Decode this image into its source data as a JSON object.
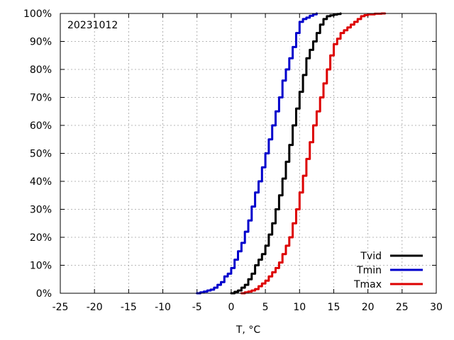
{
  "chart_data": {
    "type": "line",
    "title": "",
    "annotation": "20231012",
    "xlabel": "T, °C",
    "ylabel": "",
    "xlim": [
      -25,
      30
    ],
    "ylim": [
      0,
      100
    ],
    "xticks": [
      "-25",
      "-20",
      "-15",
      "-10",
      "-5",
      "0",
      "5",
      "10",
      "15",
      "20",
      "25",
      "30"
    ],
    "yticks": [
      "0%",
      "10%",
      "20%",
      "30%",
      "40%",
      "50%",
      "60%",
      "70%",
      "80%",
      "90%",
      "100%"
    ],
    "grid": true,
    "legend_position": "bottom-right",
    "series": [
      {
        "name": "Tvid",
        "color": "#000000",
        "x": [
          0.0,
          0.5,
          1.0,
          1.5,
          2.0,
          2.5,
          3.0,
          3.5,
          4.0,
          4.5,
          5.0,
          5.5,
          6.0,
          6.5,
          7.0,
          7.5,
          8.0,
          8.5,
          9.0,
          9.5,
          10.0,
          10.5,
          11.0,
          11.5,
          12.0,
          12.5,
          13.0,
          13.5,
          14.0,
          14.5,
          15.0,
          15.5,
          16.0
        ],
        "y": [
          0,
          0.5,
          1,
          2,
          3,
          5,
          7,
          10,
          12,
          14,
          17,
          21,
          25,
          30,
          35,
          41,
          47,
          53,
          60,
          66,
          72,
          78,
          84,
          87,
          90,
          93,
          96,
          98,
          99,
          99.3,
          99.6,
          99.8,
          100
        ]
      },
      {
        "name": "Tmin",
        "color": "#0000cc",
        "x": [
          -5.0,
          -4.5,
          -4.0,
          -3.5,
          -3.0,
          -2.5,
          -2.0,
          -1.5,
          -1.0,
          -0.5,
          0.0,
          0.5,
          1.0,
          1.5,
          2.0,
          2.5,
          3.0,
          3.5,
          4.0,
          4.5,
          5.0,
          5.5,
          6.0,
          6.5,
          7.0,
          7.5,
          8.0,
          8.5,
          9.0,
          9.5,
          10.0,
          10.5,
          11.0,
          11.5,
          12.0,
          12.5
        ],
        "y": [
          0,
          0.3,
          0.6,
          1,
          1.3,
          2,
          3,
          4,
          6,
          7,
          9,
          12,
          15,
          18,
          22,
          26,
          31,
          36,
          40,
          45,
          50,
          55,
          60,
          65,
          70,
          76,
          80,
          84,
          88,
          93,
          97,
          98,
          98.5,
          99.2,
          99.7,
          100
        ]
      },
      {
        "name": "Tmax",
        "color": "#dd0000",
        "x": [
          1.5,
          2.0,
          2.5,
          3.0,
          3.5,
          4.0,
          4.5,
          5.0,
          5.5,
          6.0,
          6.5,
          7.0,
          7.5,
          8.0,
          8.5,
          9.0,
          9.5,
          10.0,
          10.5,
          11.0,
          11.5,
          12.0,
          12.5,
          13.0,
          13.5,
          14.0,
          14.5,
          15.0,
          15.5,
          16.0,
          16.5,
          17.0,
          17.5,
          18.0,
          18.5,
          19.0,
          19.5,
          20.0,
          21.0,
          22.0,
          22.5
        ],
        "y": [
          0,
          0.3,
          0.6,
          1,
          1.5,
          2.5,
          3.5,
          4.5,
          6,
          7.5,
          9,
          11,
          14,
          17,
          20,
          25,
          30,
          36,
          42,
          48,
          54,
          60,
          65,
          70,
          75,
          80,
          85,
          89,
          91,
          93,
          94,
          95,
          96,
          97,
          98,
          99,
          99.4,
          99.7,
          99.9,
          100,
          100
        ]
      }
    ]
  }
}
